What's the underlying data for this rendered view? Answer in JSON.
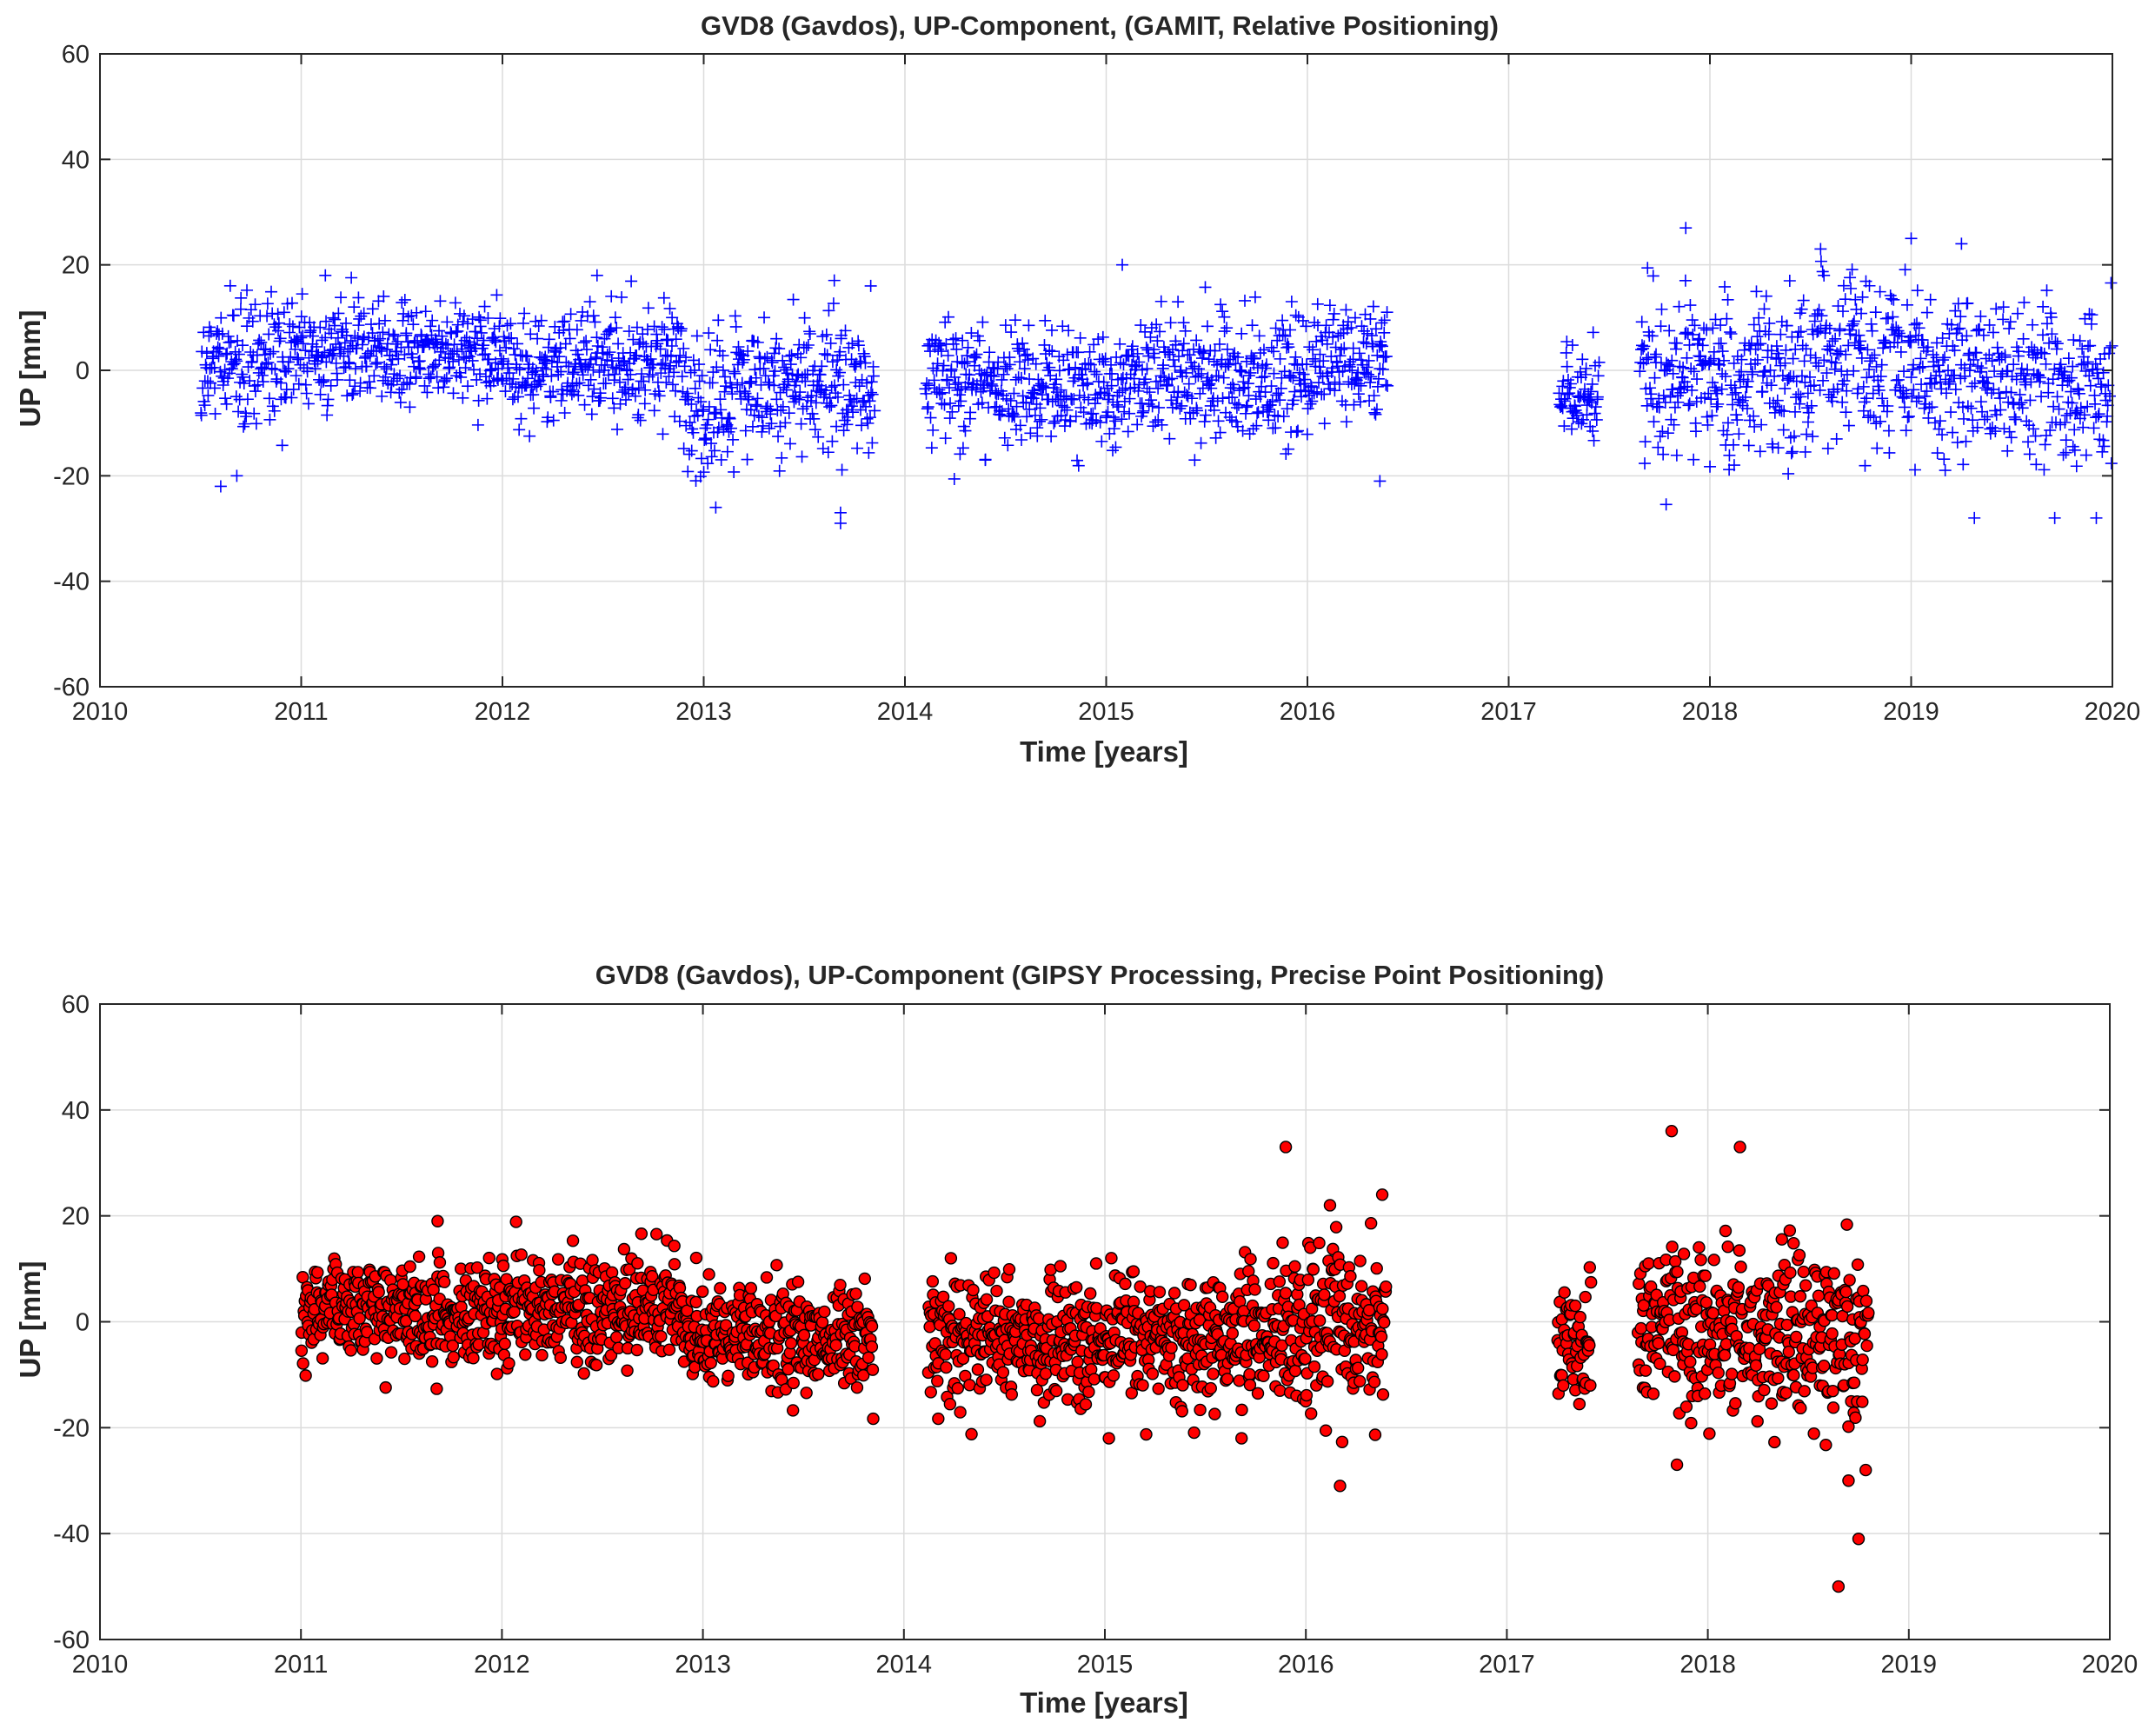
{
  "chart_data": [
    {
      "type": "scatter",
      "title": "GVD8 (Gavdos), UP-Component, (GAMIT, Relative Positioning)",
      "xlabel": "Time [years]",
      "ylabel": "UP [mm]",
      "xlim": [
        2010,
        2020
      ],
      "ylim": [
        -60,
        60
      ],
      "xticks": [
        "2010",
        "2011",
        "2012",
        "2013",
        "2014",
        "2015",
        "2016",
        "2017",
        "2018",
        "2019",
        "2020"
      ],
      "yticks": [
        "60",
        "40",
        "20",
        "0",
        "-20",
        "-40",
        "-60"
      ],
      "grid": true,
      "marker": "plus",
      "color": "#0000ff",
      "segments": [
        {
          "start": 2010.5,
          "end": 2011.0,
          "mean": 2,
          "std": 6
        },
        {
          "start": 2011.0,
          "end": 2012.0,
          "mean": 3,
          "std": 5
        },
        {
          "start": 2012.0,
          "end": 2012.9,
          "mean": 1,
          "std": 5
        },
        {
          "start": 2012.9,
          "end": 2013.15,
          "mean": -8,
          "std": 7
        },
        {
          "start": 2013.15,
          "end": 2013.85,
          "mean": -3,
          "std": 6
        },
        {
          "start": 2014.1,
          "end": 2015.0,
          "mean": -3,
          "std": 6
        },
        {
          "start": 2015.0,
          "end": 2015.9,
          "mean": -2,
          "std": 6
        },
        {
          "start": 2015.9,
          "end": 2016.4,
          "mean": 1,
          "std": 6
        },
        {
          "start": 2017.25,
          "end": 2017.45,
          "mean": -5,
          "std": 4
        },
        {
          "start": 2017.65,
          "end": 2018.5,
          "mean": -1,
          "std": 8
        },
        {
          "start": 2018.5,
          "end": 2019.0,
          "mean": 3,
          "std": 8
        },
        {
          "start": 2019.0,
          "end": 2020.0,
          "mean": -2,
          "std": 8
        }
      ],
      "outliers": [
        {
          "x": 2010.6,
          "y": -22
        },
        {
          "x": 2010.68,
          "y": -20
        },
        {
          "x": 2013.68,
          "y": -29
        },
        {
          "x": 2013.68,
          "y": -27
        },
        {
          "x": 2013.83,
          "y": 16
        },
        {
          "x": 2013.06,
          "y": -26
        },
        {
          "x": 2017.88,
          "y": 27
        },
        {
          "x": 2018.55,
          "y": 23
        },
        {
          "x": 2019.0,
          "y": 25
        },
        {
          "x": 2019.25,
          "y": 24
        },
        {
          "x": 2019.92,
          "y": -28
        },
        {
          "x": 2016.36,
          "y": -21
        },
        {
          "x": 2015.08,
          "y": 20
        },
        {
          "x": 2012.47,
          "y": 18
        },
        {
          "x": 2011.12,
          "y": 18
        }
      ]
    },
    {
      "type": "scatter",
      "title": "GVD8 (Gavdos), UP-Component (GIPSY Processing, Precise Point Positioning)",
      "xlabel": "Time [years]",
      "ylabel": "UP [mm]",
      "xlim": [
        2010,
        2020
      ],
      "ylim": [
        -60,
        60
      ],
      "xticks": [
        "2010",
        "2011",
        "2012",
        "2013",
        "2014",
        "2015",
        "2016",
        "2017",
        "2018",
        "2019",
        "2020"
      ],
      "yticks": [
        "60",
        "40",
        "20",
        "0",
        "-20",
        "-40",
        "-60"
      ],
      "grid": true,
      "marker": "circle",
      "color": "#ff0000",
      "edge_color": "#000000",
      "segments": [
        {
          "start": 2011.0,
          "end": 2012.0,
          "mean": 2,
          "std": 5
        },
        {
          "start": 2012.0,
          "end": 2012.9,
          "mean": 2,
          "std": 5
        },
        {
          "start": 2012.9,
          "end": 2013.85,
          "mean": -3,
          "std": 5
        },
        {
          "start": 2014.12,
          "end": 2015.0,
          "mean": -3,
          "std": 6
        },
        {
          "start": 2015.0,
          "end": 2015.9,
          "mean": -3,
          "std": 6
        },
        {
          "start": 2015.9,
          "end": 2016.4,
          "mean": 0,
          "std": 8
        },
        {
          "start": 2017.25,
          "end": 2017.42,
          "mean": -3,
          "std": 6
        },
        {
          "start": 2017.65,
          "end": 2018.8,
          "mean": -2,
          "std": 8
        }
      ],
      "outliers": [
        {
          "x": 2015.9,
          "y": 33
        },
        {
          "x": 2017.82,
          "y": 36
        },
        {
          "x": 2018.16,
          "y": 33
        },
        {
          "x": 2018.65,
          "y": -50
        },
        {
          "x": 2018.75,
          "y": -41
        },
        {
          "x": 2018.7,
          "y": -30
        },
        {
          "x": 2016.17,
          "y": -31
        },
        {
          "x": 2016.38,
          "y": 24
        },
        {
          "x": 2015.68,
          "y": -22
        },
        {
          "x": 2015.02,
          "y": -22
        },
        {
          "x": 2011.68,
          "y": 19
        },
        {
          "x": 2016.12,
          "y": 22
        }
      ]
    }
  ]
}
